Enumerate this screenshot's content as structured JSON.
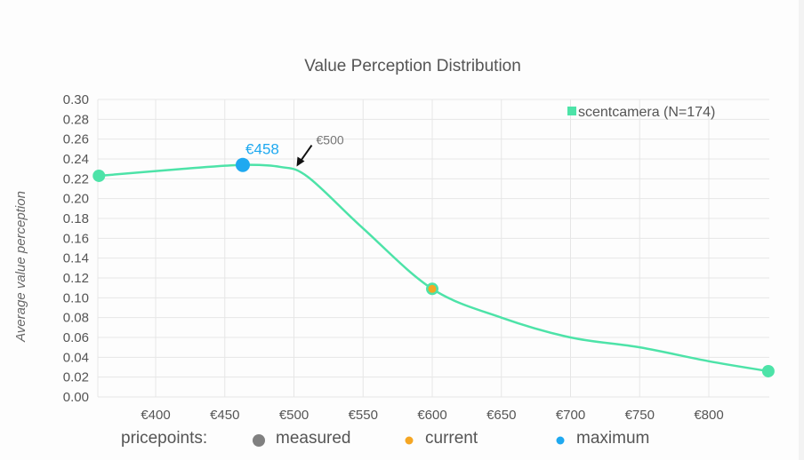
{
  "chart_data": {
    "type": "line",
    "title": "Value Perception Distribution",
    "xlabel": "",
    "ylabel": "Average value perception",
    "xlim": [
      359,
      843
    ],
    "ylim": [
      0,
      0.3
    ],
    "yticks": [
      "0.00",
      "0.02",
      "0.04",
      "0.06",
      "0.08",
      "0.10",
      "0.12",
      "0.14",
      "0.16",
      "0.18",
      "0.20",
      "0.22",
      "0.24",
      "0.26",
      "0.28",
      "0.30"
    ],
    "xticks": [
      {
        "v": 400,
        "label": "€400"
      },
      {
        "v": 450,
        "label": "€450"
      },
      {
        "v": 500,
        "label": "€500"
      },
      {
        "v": 550,
        "label": "€550"
      },
      {
        "v": 600,
        "label": "€600"
      },
      {
        "v": 650,
        "label": "€650"
      },
      {
        "v": 700,
        "label": "€700"
      },
      {
        "v": 750,
        "label": "€750"
      },
      {
        "v": 800,
        "label": "€800"
      }
    ],
    "grid": true,
    "series": [
      {
        "name": "scentcamera (N=174)",
        "color": "#4de3a8",
        "x": [
          359,
          420,
          463,
          490,
          510,
          550,
          600,
          650,
          700,
          750,
          800,
          843
        ],
        "y": [
          0.223,
          0.23,
          0.234,
          0.232,
          0.222,
          0.17,
          0.109,
          0.08,
          0.06,
          0.05,
          0.036,
          0.026
        ]
      }
    ],
    "legend_position": "top-right",
    "pricepoints": {
      "measured": [
        {
          "x": 359,
          "y": 0.223
        },
        {
          "x": 843,
          "y": 0.026
        }
      ],
      "current": {
        "x": 600,
        "y": 0.109
      },
      "maximum": {
        "x": 463,
        "y": 0.234,
        "label": "€458"
      }
    },
    "annotation": {
      "label": "€500",
      "x": 500,
      "y": 0.227
    },
    "pricepoints_legend": {
      "title": "pricepoints:",
      "measured": "measured",
      "current": "current",
      "maximum": "maximum"
    },
    "colors": {
      "line": "#4de3a8",
      "current": "#f5a623",
      "maximum": "#1fa9f0",
      "measured": "#808080"
    }
  }
}
